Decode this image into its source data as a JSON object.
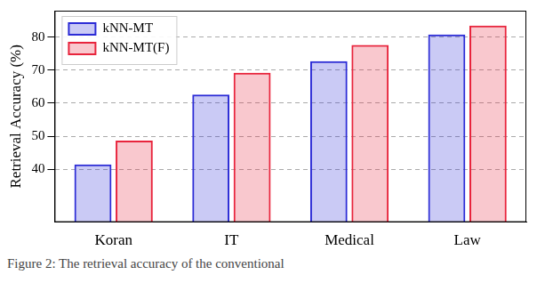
{
  "chart_data": {
    "type": "bar",
    "categories": [
      "Koran",
      "IT",
      "Medical",
      "Law"
    ],
    "series": [
      {
        "name": "kNN-MT",
        "color": "#2b2bd6",
        "values": [
          41.5,
          62.6,
          72.7,
          80.8
        ]
      },
      {
        "name": "kNN-MT(F)",
        "color": "#e8243c",
        "values": [
          48.7,
          69.2,
          77.6,
          83.5
        ]
      }
    ],
    "y_label": "Retrieval Accuracy (%)",
    "ylim": [
      24,
      88
    ],
    "yticks": [
      40,
      50,
      60,
      70,
      80
    ],
    "grid": true,
    "legend": "upper left",
    "caption": "Figure 2: The retrieval accuracy of the conventional"
  }
}
